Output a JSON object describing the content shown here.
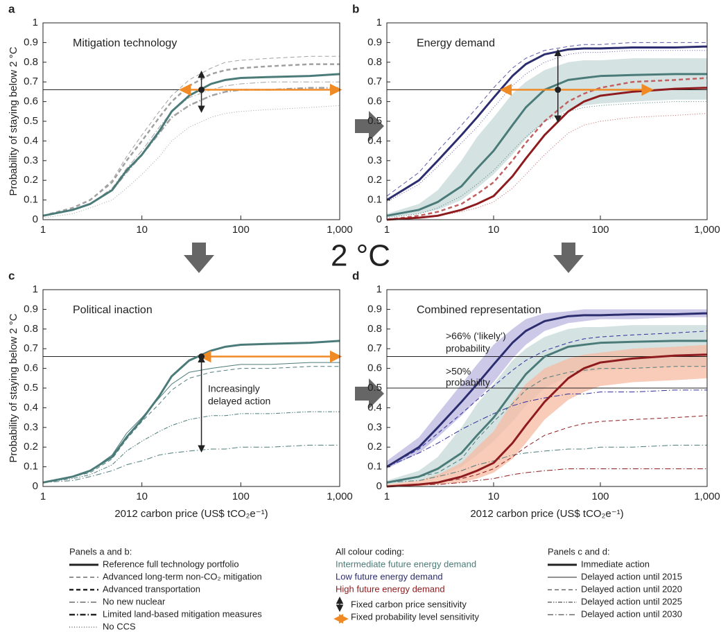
{
  "chart_data": [
    {
      "type": "line",
      "label": "a",
      "title": "Mitigation technology",
      "ylabel": "Probability of staying below 2 °C",
      "xlog": true,
      "xlim": [
        1,
        1000
      ],
      "ylim": [
        0,
        1
      ],
      "xticks": [
        1,
        10,
        100,
        {
          "value": 1000,
          "label": "1,000"
        }
      ],
      "yticks": [
        0,
        0.1,
        0.2,
        0.3,
        0.4,
        0.5,
        0.6,
        0.7,
        0.8,
        0.9,
        1
      ],
      "x": [
        1,
        2,
        3,
        5,
        7,
        10,
        15,
        20,
        30,
        50,
        70,
        100,
        200,
        500,
        1000
      ],
      "bands": [],
      "series": [
        {
          "color": "#a0a0a0",
          "style": "dashed",
          "width": 1,
          "values": [
            0.02,
            0.06,
            0.1,
            0.2,
            0.32,
            0.43,
            0.55,
            0.63,
            0.71,
            0.77,
            0.8,
            0.81,
            0.82,
            0.83,
            0.83
          ]
        },
        {
          "color": "#a0a0a0",
          "style": "dashed",
          "width": 2.5,
          "values": [
            0.02,
            0.06,
            0.1,
            0.19,
            0.3,
            0.4,
            0.52,
            0.6,
            0.68,
            0.74,
            0.76,
            0.77,
            0.78,
            0.79,
            0.79
          ]
        },
        {
          "color": "#a0a0a0",
          "style": "dashdot",
          "width": 1,
          "values": [
            0.02,
            0.05,
            0.08,
            0.16,
            0.26,
            0.35,
            0.47,
            0.55,
            0.62,
            0.66,
            0.68,
            0.69,
            0.7,
            0.7,
            0.7
          ]
        },
        {
          "color": "#a0a0a0",
          "style": "dashdot",
          "width": 2.5,
          "values": [
            0.02,
            0.05,
            0.08,
            0.15,
            0.24,
            0.33,
            0.44,
            0.52,
            0.58,
            0.63,
            0.65,
            0.66,
            0.66,
            0.67,
            0.67
          ]
        },
        {
          "color": "#a0a0a0",
          "style": "dotted",
          "width": 1,
          "values": [
            0.01,
            0.03,
            0.06,
            0.1,
            0.16,
            0.23,
            0.32,
            0.4,
            0.47,
            0.52,
            0.54,
            0.55,
            0.56,
            0.57,
            0.58
          ]
        },
        {
          "color": "#4b7b79",
          "style": "solid",
          "width": 3,
          "values": [
            0.02,
            0.05,
            0.08,
            0.15,
            0.25,
            0.33,
            0.45,
            0.55,
            0.63,
            0.69,
            0.71,
            0.72,
            0.725,
            0.73,
            0.74
          ]
        }
      ],
      "hlines": [
        0.66
      ],
      "horizontal_arrow": {
        "y": 0.66,
        "from": 25,
        "to": 1000,
        "color": "#f08a24"
      },
      "vertical_arrow": {
        "x": 40,
        "from": 0.55,
        "to": 0.75,
        "color": "#222"
      },
      "point": [
        40,
        0.66
      ]
    },
    {
      "type": "line",
      "label": "b",
      "title": "Energy demand",
      "xlog": true,
      "xlim": [
        1,
        1000
      ],
      "ylim": [
        0,
        1
      ],
      "xticks": [
        1,
        10,
        100,
        {
          "value": 1000,
          "label": "1,000"
        }
      ],
      "yticks": [
        0,
        0.1,
        0.2,
        0.3,
        0.4,
        0.5,
        0.6,
        0.7,
        0.8,
        0.9,
        1
      ],
      "x": [
        1,
        2,
        3,
        5,
        7,
        10,
        15,
        20,
        30,
        50,
        70,
        100,
        200,
        500,
        1000
      ],
      "bands": [
        {
          "color": "#c5dad8",
          "lower": [
            0.01,
            0.03,
            0.05,
            0.1,
            0.16,
            0.23,
            0.33,
            0.41,
            0.5,
            0.56,
            0.58,
            0.59,
            0.6,
            0.61,
            0.61
          ],
          "upper": [
            0.03,
            0.08,
            0.15,
            0.3,
            0.42,
            0.52,
            0.64,
            0.7,
            0.76,
            0.8,
            0.81,
            0.81,
            0.82,
            0.82,
            0.82
          ]
        }
      ],
      "series": [
        {
          "color": "#5b5aa6",
          "style": "dashed",
          "width": 1,
          "values": [
            0.12,
            0.24,
            0.35,
            0.48,
            0.57,
            0.67,
            0.77,
            0.82,
            0.86,
            0.88,
            0.89,
            0.89,
            0.9,
            0.9,
            0.9
          ]
        },
        {
          "color": "#5b5aa6",
          "style": "dotted",
          "width": 1,
          "values": [
            0.09,
            0.18,
            0.27,
            0.39,
            0.47,
            0.57,
            0.68,
            0.74,
            0.8,
            0.84,
            0.85,
            0.85,
            0.86,
            0.86,
            0.86
          ]
        },
        {
          "color": "#c06060",
          "style": "dashed",
          "width": 2.5,
          "values": [
            0,
            0.02,
            0.04,
            0.08,
            0.13,
            0.19,
            0.3,
            0.39,
            0.5,
            0.6,
            0.64,
            0.67,
            0.7,
            0.71,
            0.72
          ]
        },
        {
          "color": "#c06060",
          "style": "dotted",
          "width": 1,
          "values": [
            0,
            0.01,
            0.02,
            0.04,
            0.06,
            0.09,
            0.16,
            0.23,
            0.33,
            0.44,
            0.48,
            0.5,
            0.52,
            0.53,
            0.54
          ]
        },
        {
          "color": "#4b7b79",
          "style": "dotted",
          "width": 1,
          "values": [
            0.01,
            0.03,
            0.06,
            0.12,
            0.18,
            0.25,
            0.35,
            0.42,
            0.5,
            0.55,
            0.57,
            0.58,
            0.59,
            0.6,
            0.6
          ]
        },
        {
          "color": "#2c2d6e",
          "style": "solid",
          "width": 3,
          "values": [
            0.1,
            0.2,
            0.3,
            0.43,
            0.52,
            0.62,
            0.73,
            0.79,
            0.84,
            0.865,
            0.87,
            0.87,
            0.875,
            0.875,
            0.88
          ]
        },
        {
          "color": "#4b7b79",
          "style": "solid",
          "width": 3,
          "values": [
            0.02,
            0.05,
            0.09,
            0.17,
            0.26,
            0.35,
            0.48,
            0.57,
            0.66,
            0.71,
            0.72,
            0.73,
            0.735,
            0.74,
            0.74
          ]
        },
        {
          "color": "#8e1b1e",
          "style": "solid",
          "width": 3,
          "values": [
            0,
            0.01,
            0.02,
            0.05,
            0.08,
            0.12,
            0.22,
            0.31,
            0.43,
            0.55,
            0.6,
            0.63,
            0.65,
            0.665,
            0.67
          ]
        }
      ],
      "hlines": [
        0.66
      ],
      "horizontal_arrow": {
        "y": 0.66,
        "from": 12,
        "to": 300,
        "color": "#f08a24"
      },
      "vertical_arrow": {
        "x": 40,
        "from": 0.5,
        "to": 0.86,
        "color": "#222"
      },
      "point": [
        40,
        0.66
      ]
    },
    {
      "type": "line",
      "label": "c",
      "title": "Political inaction",
      "ylabel": "Probability of staying below 2 °C",
      "xlabel": "2012 carbon price (US$ tCO₂e⁻¹)",
      "xlog": true,
      "xlim": [
        1,
        1000
      ],
      "ylim": [
        0,
        1
      ],
      "xticks": [
        1,
        10,
        100,
        {
          "value": 1000,
          "label": "1,000"
        }
      ],
      "yticks": [
        0,
        0.1,
        0.2,
        0.3,
        0.4,
        0.5,
        0.6,
        0.7,
        0.8,
        0.9,
        1
      ],
      "x": [
        1,
        2,
        3,
        5,
        7,
        10,
        15,
        20,
        30,
        50,
        70,
        100,
        200,
        500,
        1000
      ],
      "bands": [],
      "series": [
        {
          "color": "#4b7b79",
          "style": "solid",
          "width": 1,
          "values": [
            0.02,
            0.05,
            0.08,
            0.16,
            0.27,
            0.35,
            0.45,
            0.52,
            0.58,
            0.6,
            0.61,
            0.62,
            0.62,
            0.63,
            0.63
          ]
        },
        {
          "color": "#4b7b79",
          "style": "dashed",
          "width": 1,
          "values": [
            0.02,
            0.05,
            0.07,
            0.14,
            0.24,
            0.33,
            0.42,
            0.49,
            0.55,
            0.58,
            0.59,
            0.6,
            0.6,
            0.61,
            0.61
          ]
        },
        {
          "color": "#4b7b79",
          "style": "dashdotdot",
          "width": 1,
          "values": [
            0.02,
            0.04,
            0.06,
            0.11,
            0.18,
            0.23,
            0.28,
            0.31,
            0.34,
            0.36,
            0.36,
            0.37,
            0.37,
            0.38,
            0.38
          ]
        },
        {
          "color": "#4b7b79",
          "style": "dashdot",
          "width": 1,
          "values": [
            0.02,
            0.03,
            0.05,
            0.08,
            0.11,
            0.13,
            0.16,
            0.17,
            0.18,
            0.19,
            0.19,
            0.2,
            0.2,
            0.21,
            0.21
          ]
        },
        {
          "color": "#4b7b79",
          "style": "solid",
          "width": 3,
          "values": [
            0.02,
            0.05,
            0.08,
            0.15,
            0.25,
            0.34,
            0.46,
            0.56,
            0.64,
            0.69,
            0.71,
            0.72,
            0.725,
            0.73,
            0.74
          ]
        }
      ],
      "hlines": [
        0.66
      ],
      "horizontal_arrow": {
        "y": 0.66,
        "from": 40,
        "to": 1000,
        "color": "#f08a24"
      },
      "vertical_arrow": {
        "x": 40,
        "from": 0.66,
        "to": 0.18,
        "color": "#222"
      },
      "point": [
        40,
        0.66
      ],
      "annotations": [
        "Increasingly",
        "delayed action"
      ]
    },
    {
      "type": "line",
      "label": "d",
      "title": "Combined representation",
      "xlabel": "2012 carbon price (US$ tCO₂e⁻¹)",
      "xlog": true,
      "xlim": [
        1,
        1000
      ],
      "ylim": [
        0,
        1
      ],
      "xticks": [
        1,
        10,
        100,
        {
          "value": 1000,
          "label": "1,000"
        }
      ],
      "yticks": [
        0,
        0.1,
        0.2,
        0.3,
        0.4,
        0.5,
        0.6,
        0.7,
        0.8,
        0.9,
        1
      ],
      "x": [
        1,
        2,
        3,
        5,
        7,
        10,
        15,
        20,
        30,
        50,
        70,
        100,
        200,
        500,
        1000
      ],
      "bands": [
        {
          "color": "#b9b5e0",
          "lower": [
            0.09,
            0.17,
            0.25,
            0.36,
            0.44,
            0.53,
            0.65,
            0.72,
            0.79,
            0.83,
            0.84,
            0.85,
            0.85,
            0.86,
            0.86
          ],
          "upper": [
            0.13,
            0.25,
            0.37,
            0.52,
            0.62,
            0.72,
            0.8,
            0.85,
            0.88,
            0.89,
            0.9,
            0.9,
            0.9,
            0.9,
            0.9
          ]
        },
        {
          "color": "#c5dad8",
          "lower": [
            0.01,
            0.03,
            0.05,
            0.1,
            0.16,
            0.23,
            0.33,
            0.41,
            0.5,
            0.56,
            0.58,
            0.59,
            0.6,
            0.61,
            0.61
          ],
          "upper": [
            0.03,
            0.08,
            0.15,
            0.3,
            0.42,
            0.52,
            0.64,
            0.7,
            0.76,
            0.8,
            0.81,
            0.81,
            0.82,
            0.82,
            0.82
          ]
        },
        {
          "color": "#f7b9a2",
          "lower": [
            0,
            0,
            0.01,
            0.02,
            0.04,
            0.07,
            0.14,
            0.22,
            0.34,
            0.44,
            0.48,
            0.51,
            0.53,
            0.54,
            0.55
          ],
          "upper": [
            0.01,
            0.03,
            0.06,
            0.12,
            0.2,
            0.28,
            0.43,
            0.52,
            0.6,
            0.65,
            0.67,
            0.68,
            0.7,
            0.71,
            0.72
          ]
        }
      ],
      "series": [
        {
          "color": "#2c2d9e",
          "style": "dashed",
          "width": 1,
          "values": [
            0.1,
            0.19,
            0.27,
            0.37,
            0.44,
            0.51,
            0.59,
            0.64,
            0.69,
            0.73,
            0.75,
            0.76,
            0.77,
            0.78,
            0.79
          ]
        },
        {
          "color": "#2c2d9e",
          "style": "dashdot",
          "width": 1,
          "values": [
            0.1,
            0.17,
            0.22,
            0.29,
            0.33,
            0.37,
            0.41,
            0.43,
            0.45,
            0.47,
            0.47,
            0.48,
            0.48,
            0.49,
            0.49
          ]
        },
        {
          "color": "#4b7b79",
          "style": "dashed",
          "width": 1,
          "values": [
            0.02,
            0.05,
            0.07,
            0.14,
            0.24,
            0.33,
            0.42,
            0.49,
            0.55,
            0.58,
            0.59,
            0.6,
            0.6,
            0.61,
            0.61
          ]
        },
        {
          "color": "#4b7b79",
          "style": "dashdot",
          "width": 1,
          "values": [
            0.02,
            0.03,
            0.05,
            0.08,
            0.11,
            0.13,
            0.16,
            0.17,
            0.18,
            0.19,
            0.19,
            0.2,
            0.2,
            0.21,
            0.21
          ]
        },
        {
          "color": "#8e1b1e",
          "style": "dashed",
          "width": 1,
          "values": [
            0,
            0.01,
            0.02,
            0.04,
            0.06,
            0.09,
            0.15,
            0.2,
            0.26,
            0.3,
            0.32,
            0.33,
            0.34,
            0.35,
            0.36
          ]
        },
        {
          "color": "#8e1b1e",
          "style": "dashdot",
          "width": 1,
          "values": [
            0,
            0.01,
            0.01,
            0.02,
            0.03,
            0.04,
            0.06,
            0.07,
            0.08,
            0.09,
            0.09,
            0.09,
            0.09,
            0.09,
            0.09
          ]
        },
        {
          "color": "#2c2d6e",
          "style": "solid",
          "width": 3,
          "values": [
            0.1,
            0.2,
            0.3,
            0.43,
            0.52,
            0.62,
            0.73,
            0.79,
            0.84,
            0.865,
            0.87,
            0.87,
            0.875,
            0.875,
            0.88
          ]
        },
        {
          "color": "#4b7b79",
          "style": "solid",
          "width": 3,
          "values": [
            0.02,
            0.05,
            0.09,
            0.17,
            0.26,
            0.35,
            0.48,
            0.57,
            0.66,
            0.71,
            0.72,
            0.73,
            0.735,
            0.74,
            0.74
          ]
        },
        {
          "color": "#8e1b1e",
          "style": "solid",
          "width": 3,
          "values": [
            0,
            0.01,
            0.02,
            0.05,
            0.08,
            0.12,
            0.22,
            0.31,
            0.43,
            0.55,
            0.6,
            0.63,
            0.65,
            0.665,
            0.67
          ]
        }
      ],
      "hlines": [
        0.66,
        0.5
      ],
      "annotations": [
        ">66% (‘likely’)",
        "probability",
        ">50%",
        "probability"
      ]
    }
  ],
  "center_label": "2 °C",
  "legend": {
    "columns": [
      {
        "heading": "Panels a and b:",
        "items": [
          "Reference full technology portfolio",
          "Advanced long-term non-CO₂ mitigation",
          "Advanced transportation",
          "No new nuclear",
          "Limited land-based mitigation measures",
          "No CCS"
        ]
      },
      {
        "heading": "All colour coding:",
        "items": [
          "Intermediate future energy demand",
          "Low future energy demand",
          "High future energy demand",
          "Fixed carbon price sensitivity",
          "Fixed probability level sensitivity"
        ]
      },
      {
        "heading": "Panels c and d:",
        "items": [
          "Immediate action",
          "Delayed action until 2015",
          "Delayed action until 2020",
          "Delayed action until 2025",
          "Delayed action until 2030"
        ]
      }
    ]
  }
}
